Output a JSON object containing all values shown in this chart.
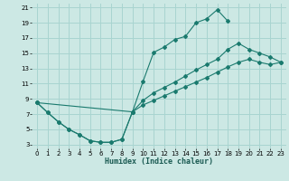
{
  "xlabel": "Humidex (Indice chaleur)",
  "bg_color": "#cce8e4",
  "grid_color": "#a8d4d0",
  "line_color": "#1a7a6e",
  "xlim": [
    -0.5,
    23.5
  ],
  "ylim": [
    2.5,
    21.5
  ],
  "xticks": [
    0,
    1,
    2,
    3,
    4,
    5,
    6,
    7,
    8,
    9,
    10,
    11,
    12,
    13,
    14,
    15,
    16,
    17,
    18,
    19,
    20,
    21,
    22,
    23
  ],
  "yticks": [
    3,
    5,
    7,
    9,
    11,
    13,
    15,
    17,
    19,
    21
  ],
  "curve1_x": [
    0,
    1,
    2,
    3,
    4,
    5,
    6,
    7,
    8,
    9,
    10,
    11,
    12,
    13,
    14,
    15,
    16,
    17,
    18
  ],
  "curve1_y": [
    8.5,
    7.2,
    6.0,
    5.0,
    4.3,
    3.5,
    3.3,
    3.3,
    3.7,
    7.3,
    11.3,
    15.1,
    15.8,
    16.8,
    17.2,
    19.0,
    19.5,
    20.7,
    19.2
  ],
  "curve2_x": [
    0,
    1,
    2,
    3,
    4,
    5,
    6,
    7,
    8,
    9,
    10,
    11,
    12,
    13,
    14,
    15,
    16,
    17,
    18,
    19,
    20,
    21,
    22,
    23
  ],
  "curve2_y": [
    8.5,
    7.2,
    6.0,
    5.0,
    4.3,
    3.5,
    3.3,
    3.3,
    3.7,
    7.3,
    8.2,
    8.8,
    9.4,
    10.0,
    10.6,
    11.2,
    11.8,
    12.5,
    13.2,
    13.8,
    14.2,
    13.8,
    13.5,
    13.8
  ],
  "curve3_x": [
    0,
    9,
    10,
    11,
    12,
    13,
    14,
    15,
    16,
    17,
    18,
    19,
    20,
    21,
    22,
    23
  ],
  "curve3_y": [
    8.5,
    7.3,
    8.8,
    9.8,
    10.5,
    11.2,
    12.0,
    12.8,
    13.5,
    14.2,
    15.5,
    16.3,
    15.5,
    15.0,
    14.5,
    13.8
  ]
}
